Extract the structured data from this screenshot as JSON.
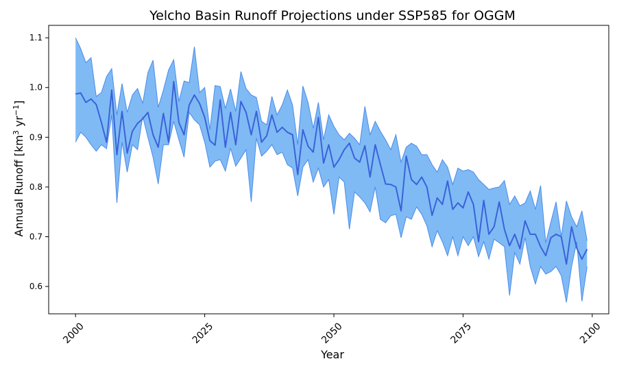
{
  "chart_data": {
    "type": "area",
    "title": "Yelcho Basin Runoff Projections under SSP585 for OGGM",
    "xlabel": "Year",
    "ylabel_main": "Annual Runoff [km",
    "ylabel_sup1": "3",
    "ylabel_mid": " yr",
    "ylabel_sup2": "−1",
    "ylabel_end": "]",
    "xlim": [
      1994.8,
      2103.2
    ],
    "ylim": [
      0.545,
      1.125
    ],
    "xticks": [
      2000,
      2025,
      2050,
      2075,
      2100
    ],
    "xtick_labels": [
      "2000",
      "2025",
      "2050",
      "2075",
      "2100"
    ],
    "yticks": [
      0.6,
      0.7,
      0.8,
      0.9,
      1.0,
      1.1
    ],
    "ytick_labels": [
      "0.6",
      "0.7",
      "0.8",
      "0.9",
      "1.0",
      "1.1"
    ],
    "grid": false,
    "colors": {
      "band_fill": "#7fbaf5",
      "band_edge": "#4a8ae8",
      "mean_line": "#3a62d8"
    },
    "start_year": 2000,
    "series": [
      {
        "role": "mean",
        "values": [
          0.987,
          0.989,
          0.97,
          0.977,
          0.966,
          0.93,
          0.89,
          0.995,
          0.865,
          0.952,
          0.868,
          0.912,
          0.928,
          0.937,
          0.95,
          0.905,
          0.88,
          0.948,
          0.89,
          1.012,
          0.93,
          0.905,
          0.965,
          0.985,
          0.968,
          0.94,
          0.893,
          0.884,
          0.975,
          0.88,
          0.95,
          0.885,
          0.972,
          0.95,
          0.905,
          0.952,
          0.89,
          0.903,
          0.945,
          0.91,
          0.92,
          0.91,
          0.905,
          0.825,
          0.915,
          0.882,
          0.87,
          0.94,
          0.848,
          0.885,
          0.84,
          0.855,
          0.875,
          0.888,
          0.858,
          0.85,
          0.883,
          0.82,
          0.885,
          0.845,
          0.806,
          0.805,
          0.8,
          0.752,
          0.862,
          0.815,
          0.805,
          0.82,
          0.8,
          0.743,
          0.778,
          0.765,
          0.812,
          0.755,
          0.768,
          0.758,
          0.79,
          0.765,
          0.69,
          0.773,
          0.705,
          0.72,
          0.77,
          0.715,
          0.682,
          0.705,
          0.676,
          0.732,
          0.705,
          0.705,
          0.68,
          0.662,
          0.698,
          0.705,
          0.7,
          0.645,
          0.72,
          0.677,
          0.655,
          0.675
        ]
      },
      {
        "role": "upper",
        "values": [
          1.1,
          1.078,
          1.05,
          1.06,
          0.982,
          0.99,
          1.022,
          1.038,
          0.945,
          1.008,
          0.95,
          0.985,
          0.998,
          0.968,
          1.03,
          1.055,
          0.96,
          0.995,
          1.035,
          1.056,
          0.972,
          1.013,
          1.01,
          1.082,
          0.99,
          1.0,
          0.915,
          1.004,
          1.002,
          0.958,
          0.997,
          0.952,
          1.032,
          0.998,
          0.985,
          0.98,
          0.932,
          0.925,
          0.982,
          0.945,
          0.965,
          0.995,
          0.965,
          0.885,
          1.003,
          0.97,
          0.918,
          0.97,
          0.895,
          0.945,
          0.922,
          0.905,
          0.895,
          0.908,
          0.898,
          0.885,
          0.962,
          0.905,
          0.932,
          0.912,
          0.895,
          0.875,
          0.905,
          0.85,
          0.88,
          0.888,
          0.882,
          0.865,
          0.865,
          0.845,
          0.83,
          0.855,
          0.84,
          0.805,
          0.838,
          0.832,
          0.835,
          0.83,
          0.815,
          0.805,
          0.795,
          0.798,
          0.8,
          0.813,
          0.765,
          0.782,
          0.762,
          0.768,
          0.792,
          0.755,
          0.803,
          0.688,
          0.73,
          0.77,
          0.7,
          0.772,
          0.74,
          0.72,
          0.752,
          0.692
        ]
      },
      {
        "role": "lower",
        "values": [
          0.89,
          0.91,
          0.9,
          0.885,
          0.872,
          0.885,
          0.877,
          0.945,
          0.768,
          0.89,
          0.83,
          0.885,
          0.875,
          0.942,
          0.9,
          0.86,
          0.806,
          0.885,
          0.885,
          0.932,
          0.895,
          0.86,
          0.95,
          0.935,
          0.925,
          0.89,
          0.84,
          0.852,
          0.855,
          0.832,
          0.878,
          0.842,
          0.858,
          0.875,
          0.77,
          0.898,
          0.862,
          0.872,
          0.885,
          0.865,
          0.87,
          0.845,
          0.838,
          0.782,
          0.84,
          0.855,
          0.81,
          0.838,
          0.8,
          0.815,
          0.745,
          0.82,
          0.81,
          0.715,
          0.79,
          0.78,
          0.768,
          0.75,
          0.8,
          0.735,
          0.728,
          0.742,
          0.745,
          0.698,
          0.74,
          0.735,
          0.76,
          0.745,
          0.722,
          0.68,
          0.712,
          0.69,
          0.662,
          0.7,
          0.662,
          0.7,
          0.682,
          0.7,
          0.66,
          0.69,
          0.655,
          0.695,
          0.688,
          0.68,
          0.582,
          0.668,
          0.645,
          0.698,
          0.64,
          0.605,
          0.64,
          0.625,
          0.63,
          0.64,
          0.622,
          0.568,
          0.64,
          0.69,
          0.57,
          0.64
        ]
      }
    ]
  }
}
